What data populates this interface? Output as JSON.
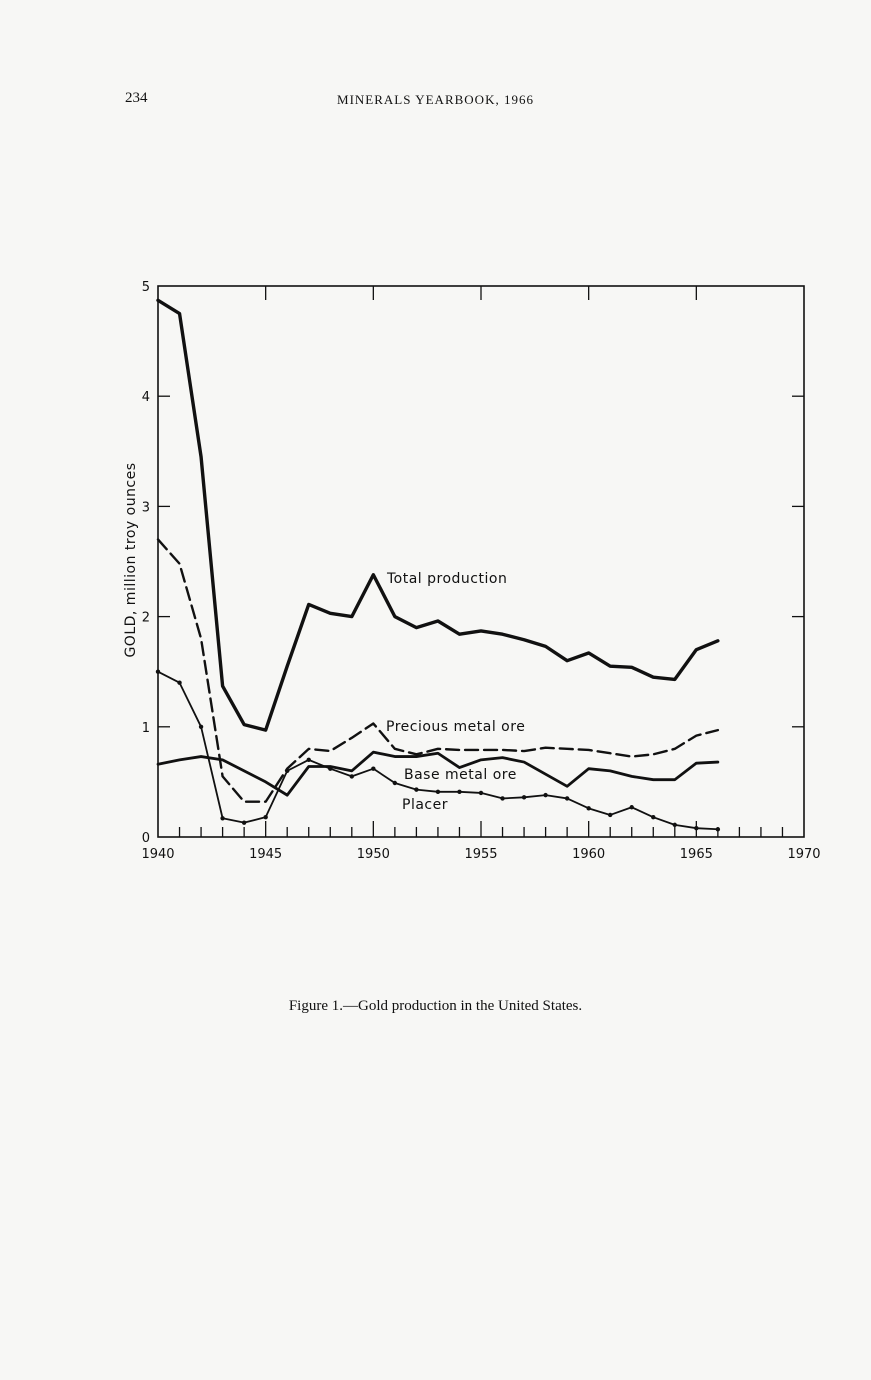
{
  "page": {
    "page_number": "234",
    "running_head": "MINERALS YEARBOOK, 1966",
    "caption": "Figure 1.—Gold production in the United States."
  },
  "chart_data": {
    "type": "line",
    "title": "",
    "xlabel": "",
    "ylabel": "GOLD, million troy ounces",
    "xlim": [
      1940,
      1970
    ],
    "ylim": [
      0,
      5
    ],
    "x_ticks": [
      1940,
      1945,
      1950,
      1955,
      1960,
      1965,
      1970
    ],
    "x_tick_labels": [
      "1940",
      "1945",
      "1950",
      "1955",
      "1960",
      "1965",
      "1970"
    ],
    "y_ticks": [
      0,
      1,
      2,
      3,
      4,
      5
    ],
    "y_tick_labels": [
      "0",
      "1",
      "2",
      "3",
      "4",
      "5"
    ],
    "grid": false,
    "legend": "none",
    "x": [
      1940,
      1941,
      1942,
      1943,
      1944,
      1945,
      1946,
      1947,
      1948,
      1949,
      1950,
      1951,
      1952,
      1953,
      1954,
      1955,
      1956,
      1957,
      1958,
      1959,
      1960,
      1961,
      1962,
      1963,
      1964,
      1965,
      1966
    ],
    "series": [
      {
        "name": "Total production",
        "style": "solid-thick",
        "values": [
          4.87,
          4.75,
          3.45,
          1.37,
          1.02,
          0.97,
          1.55,
          2.11,
          2.03,
          2.0,
          2.38,
          2.0,
          1.9,
          1.96,
          1.84,
          1.87,
          1.84,
          1.79,
          1.73,
          1.6,
          1.67,
          1.55,
          1.54,
          1.45,
          1.43,
          1.7,
          1.78
        ]
      },
      {
        "name": "Precious metal ore",
        "style": "dashed",
        "values": [
          2.7,
          2.48,
          1.8,
          0.55,
          0.32,
          0.32,
          0.62,
          0.8,
          0.78,
          0.9,
          1.03,
          0.8,
          0.75,
          0.8,
          0.79,
          0.79,
          0.79,
          0.78,
          0.81,
          0.8,
          0.79,
          0.76,
          0.73,
          0.75,
          0.8,
          0.92,
          0.97
        ]
      },
      {
        "name": "Base metal ore",
        "style": "solid",
        "values": [
          0.66,
          0.7,
          0.73,
          0.7,
          0.6,
          0.5,
          0.38,
          0.64,
          0.64,
          0.6,
          0.77,
          0.73,
          0.73,
          0.76,
          0.63,
          0.7,
          0.72,
          0.68,
          0.57,
          0.46,
          0.62,
          0.6,
          0.55,
          0.52,
          0.52,
          0.67,
          0.68
        ]
      },
      {
        "name": "Placer",
        "style": "dot-dash",
        "values": [
          1.5,
          1.4,
          1.0,
          0.17,
          0.13,
          0.18,
          0.6,
          0.7,
          0.62,
          0.55,
          0.62,
          0.49,
          0.43,
          0.41,
          0.41,
          0.4,
          0.35,
          0.36,
          0.38,
          0.35,
          0.26,
          0.2,
          0.27,
          0.18,
          0.11,
          0.08,
          0.07
        ]
      }
    ]
  }
}
